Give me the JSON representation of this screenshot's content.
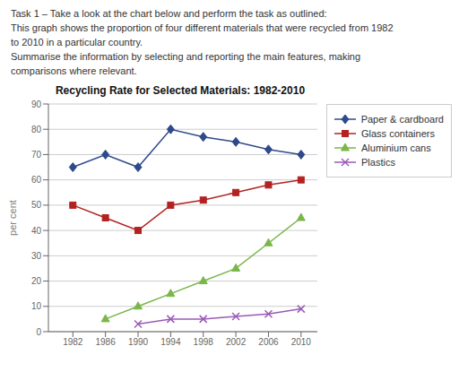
{
  "chart_data": {
    "type": "line",
    "title": "Recycling Rate for Selected Materials: 1982-2010",
    "annotations": [
      "Task 1 – Take a look at the chart below and perform the task as outlined:",
      "This graph shows the proportion of four different materials that were recycled from 1982",
      "to 2010 in a particular country.",
      "Summarise the information by selecting and reporting the main features, making",
      "comparisons where relevant."
    ],
    "ylabel": "per cent",
    "x": [
      1982,
      1986,
      1990,
      1994,
      1998,
      2002,
      2006,
      2010
    ],
    "xlim": [
      1979,
      2012
    ],
    "xticks": [
      1982,
      1986,
      1990,
      1994,
      1998,
      2002,
      2006,
      2010
    ],
    "ylim": [
      0,
      90
    ],
    "yticks": [
      0,
      10,
      20,
      30,
      40,
      50,
      60,
      70,
      80,
      90
    ],
    "grid": "y",
    "legend": "right",
    "series": [
      {
        "name": "Paper & cardboard",
        "color": "#2E4A8B",
        "marker": "diamond",
        "line_style": "solid",
        "values": [
          65,
          70,
          65,
          80,
          77,
          75,
          72,
          70
        ]
      },
      {
        "name": "Glass containers",
        "color": "#B22222",
        "marker": "square",
        "line_style": "solid",
        "values": [
          50,
          45,
          40,
          50,
          52,
          55,
          58,
          60
        ]
      },
      {
        "name": "Aluminium cans",
        "color": "#7AB648",
        "marker": "triangle",
        "line_style": "solid",
        "values": [
          null,
          5,
          10,
          15,
          20,
          25,
          35,
          45
        ]
      },
      {
        "name": "Plastics",
        "color": "#9B59B6",
        "marker": "x",
        "line_style": "solid",
        "values": [
          null,
          null,
          3,
          5,
          5,
          6,
          7,
          9
        ]
      }
    ]
  }
}
